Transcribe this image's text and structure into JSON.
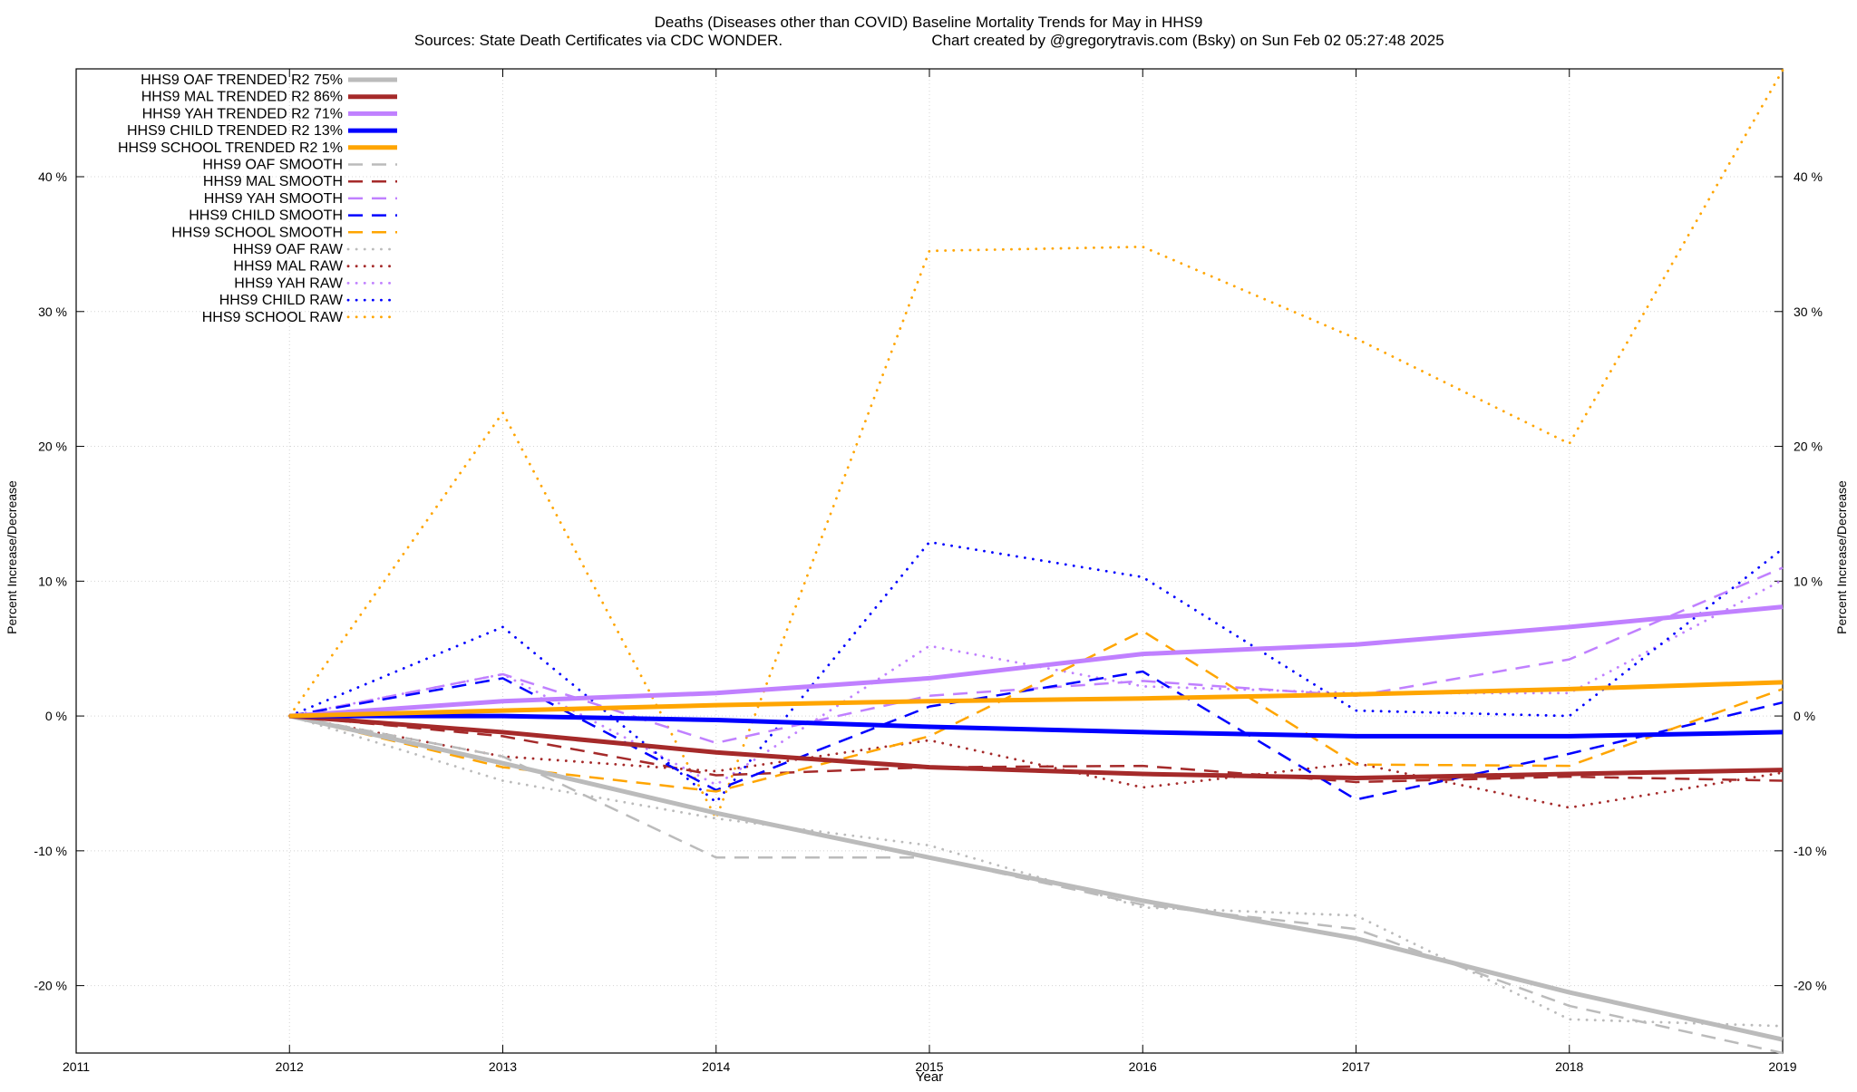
{
  "chart_data": {
    "type": "line",
    "title": "Deaths (Diseases other than COVID)  Baseline Mortality Trends for May in HHS9",
    "subtitle_left": "Sources: State Death Certificates via CDC WONDER.",
    "subtitle_right": "Chart created by @gregorytravis.com (Bsky) on Sun Feb 02 05:27:48 2025",
    "xlabel": "Year",
    "ylabel": "Percent Increase/Decrease",
    "y2label": "Percent Increase/Decrease",
    "xlim": [
      2011,
      2019
    ],
    "ylim": [
      -25,
      48
    ],
    "x_ticks": [
      "2011",
      "2012",
      "2013",
      "2014",
      "2015",
      "2016",
      "2017",
      "2018",
      "2019"
    ],
    "x_tick_values": [
      2011,
      2012,
      2013,
      2014,
      2015,
      2016,
      2017,
      2018,
      2019
    ],
    "y_ticks": [
      "-20 %",
      "-10 %",
      "0 %",
      "10 %",
      "20 %",
      "30 %",
      "40 %"
    ],
    "y_tick_values": [
      -20,
      -10,
      0,
      10,
      20,
      30,
      40
    ],
    "grid": true,
    "legend_position": "top-left",
    "x": [
      2012,
      2013,
      2014,
      2015,
      2016,
      2017,
      2018,
      2019
    ],
    "series": [
      {
        "name": "HHS9 OAF TRENDED R2  75%",
        "style": "trend",
        "color": "#bbbbbb",
        "values": [
          0,
          -3.5,
          -7.2,
          -10.5,
          -13.7,
          -16.5,
          -20.5,
          -24
        ]
      },
      {
        "name": "HHS9 MAL TRENDED R2  86%",
        "style": "trend",
        "color": "#a52a2a",
        "values": [
          0,
          -1.2,
          -2.7,
          -3.8,
          -4.3,
          -4.6,
          -4.3,
          -4.0
        ]
      },
      {
        "name": "HHS9 YAH TRENDED R2  71%",
        "style": "trend",
        "color": "#c080ff",
        "values": [
          0,
          1.1,
          1.7,
          2.8,
          4.6,
          5.3,
          6.6,
          8.1
        ]
      },
      {
        "name": "HHS9 CHILD TRENDED R2  13%",
        "style": "trend",
        "color": "#0000ff",
        "values": [
          0,
          0,
          -0.3,
          -0.8,
          -1.2,
          -1.5,
          -1.5,
          -1.2
        ]
      },
      {
        "name": "HHS9 SCHOOL TRENDED R2   1%",
        "style": "trend",
        "color": "#ffa500",
        "values": [
          0,
          0.4,
          0.8,
          1.1,
          1.3,
          1.6,
          2.0,
          2.5
        ]
      },
      {
        "name": "HHS9 OAF SMOOTH",
        "style": "smooth",
        "color": "#bbbbbb",
        "values": [
          0,
          -3.0,
          -10.5,
          -10.5,
          -14.0,
          -15.8,
          -21.5,
          -25.0
        ]
      },
      {
        "name": "HHS9 MAL SMOOTH",
        "style": "smooth",
        "color": "#a52a2a",
        "values": [
          0,
          -1.5,
          -4.4,
          -3.8,
          -3.7,
          -4.9,
          -4.5,
          -4.8
        ]
      },
      {
        "name": "HHS9 YAH SMOOTH",
        "style": "smooth",
        "color": "#c080ff",
        "values": [
          0,
          3.1,
          -2.0,
          1.5,
          2.6,
          1.5,
          4.2,
          11.0
        ]
      },
      {
        "name": "HHS9 CHILD SMOOTH",
        "style": "smooth",
        "color": "#0000ff",
        "values": [
          0,
          2.8,
          -5.5,
          0.7,
          3.3,
          -6.2,
          -2.8,
          1.0
        ]
      },
      {
        "name": "HHS9 SCHOOL SMOOTH",
        "style": "smooth",
        "color": "#ffa500",
        "values": [
          0,
          -3.8,
          -5.6,
          -1.5,
          6.3,
          -3.6,
          -3.7,
          2.0
        ]
      },
      {
        "name": "HHS9 OAF RAW",
        "style": "raw",
        "color": "#bbbbbb",
        "values": [
          0,
          -4.8,
          -7.6,
          -9.6,
          -14.2,
          -14.8,
          -22.5,
          -23.0
        ]
      },
      {
        "name": "HHS9 MAL RAW",
        "style": "raw",
        "color": "#a52a2a",
        "values": [
          0,
          -3.0,
          -4.1,
          -1.8,
          -5.3,
          -3.5,
          -6.8,
          -4.2
        ]
      },
      {
        "name": "HHS9 YAH RAW",
        "style": "raw",
        "color": "#c080ff",
        "values": [
          0,
          3.1,
          -5.1,
          5.2,
          2.2,
          1.7,
          1.7,
          10.1
        ]
      },
      {
        "name": "HHS9 CHILD RAW",
        "style": "raw",
        "color": "#0000ff",
        "values": [
          0,
          6.6,
          -6.4,
          12.9,
          10.3,
          0.4,
          0.0,
          12.4
        ]
      },
      {
        "name": "HHS9 SCHOOL RAW",
        "style": "raw",
        "color": "#ffa500",
        "values": [
          0,
          22.5,
          -7.6,
          34.5,
          34.8,
          28.0,
          20.2,
          47.9
        ]
      }
    ]
  }
}
